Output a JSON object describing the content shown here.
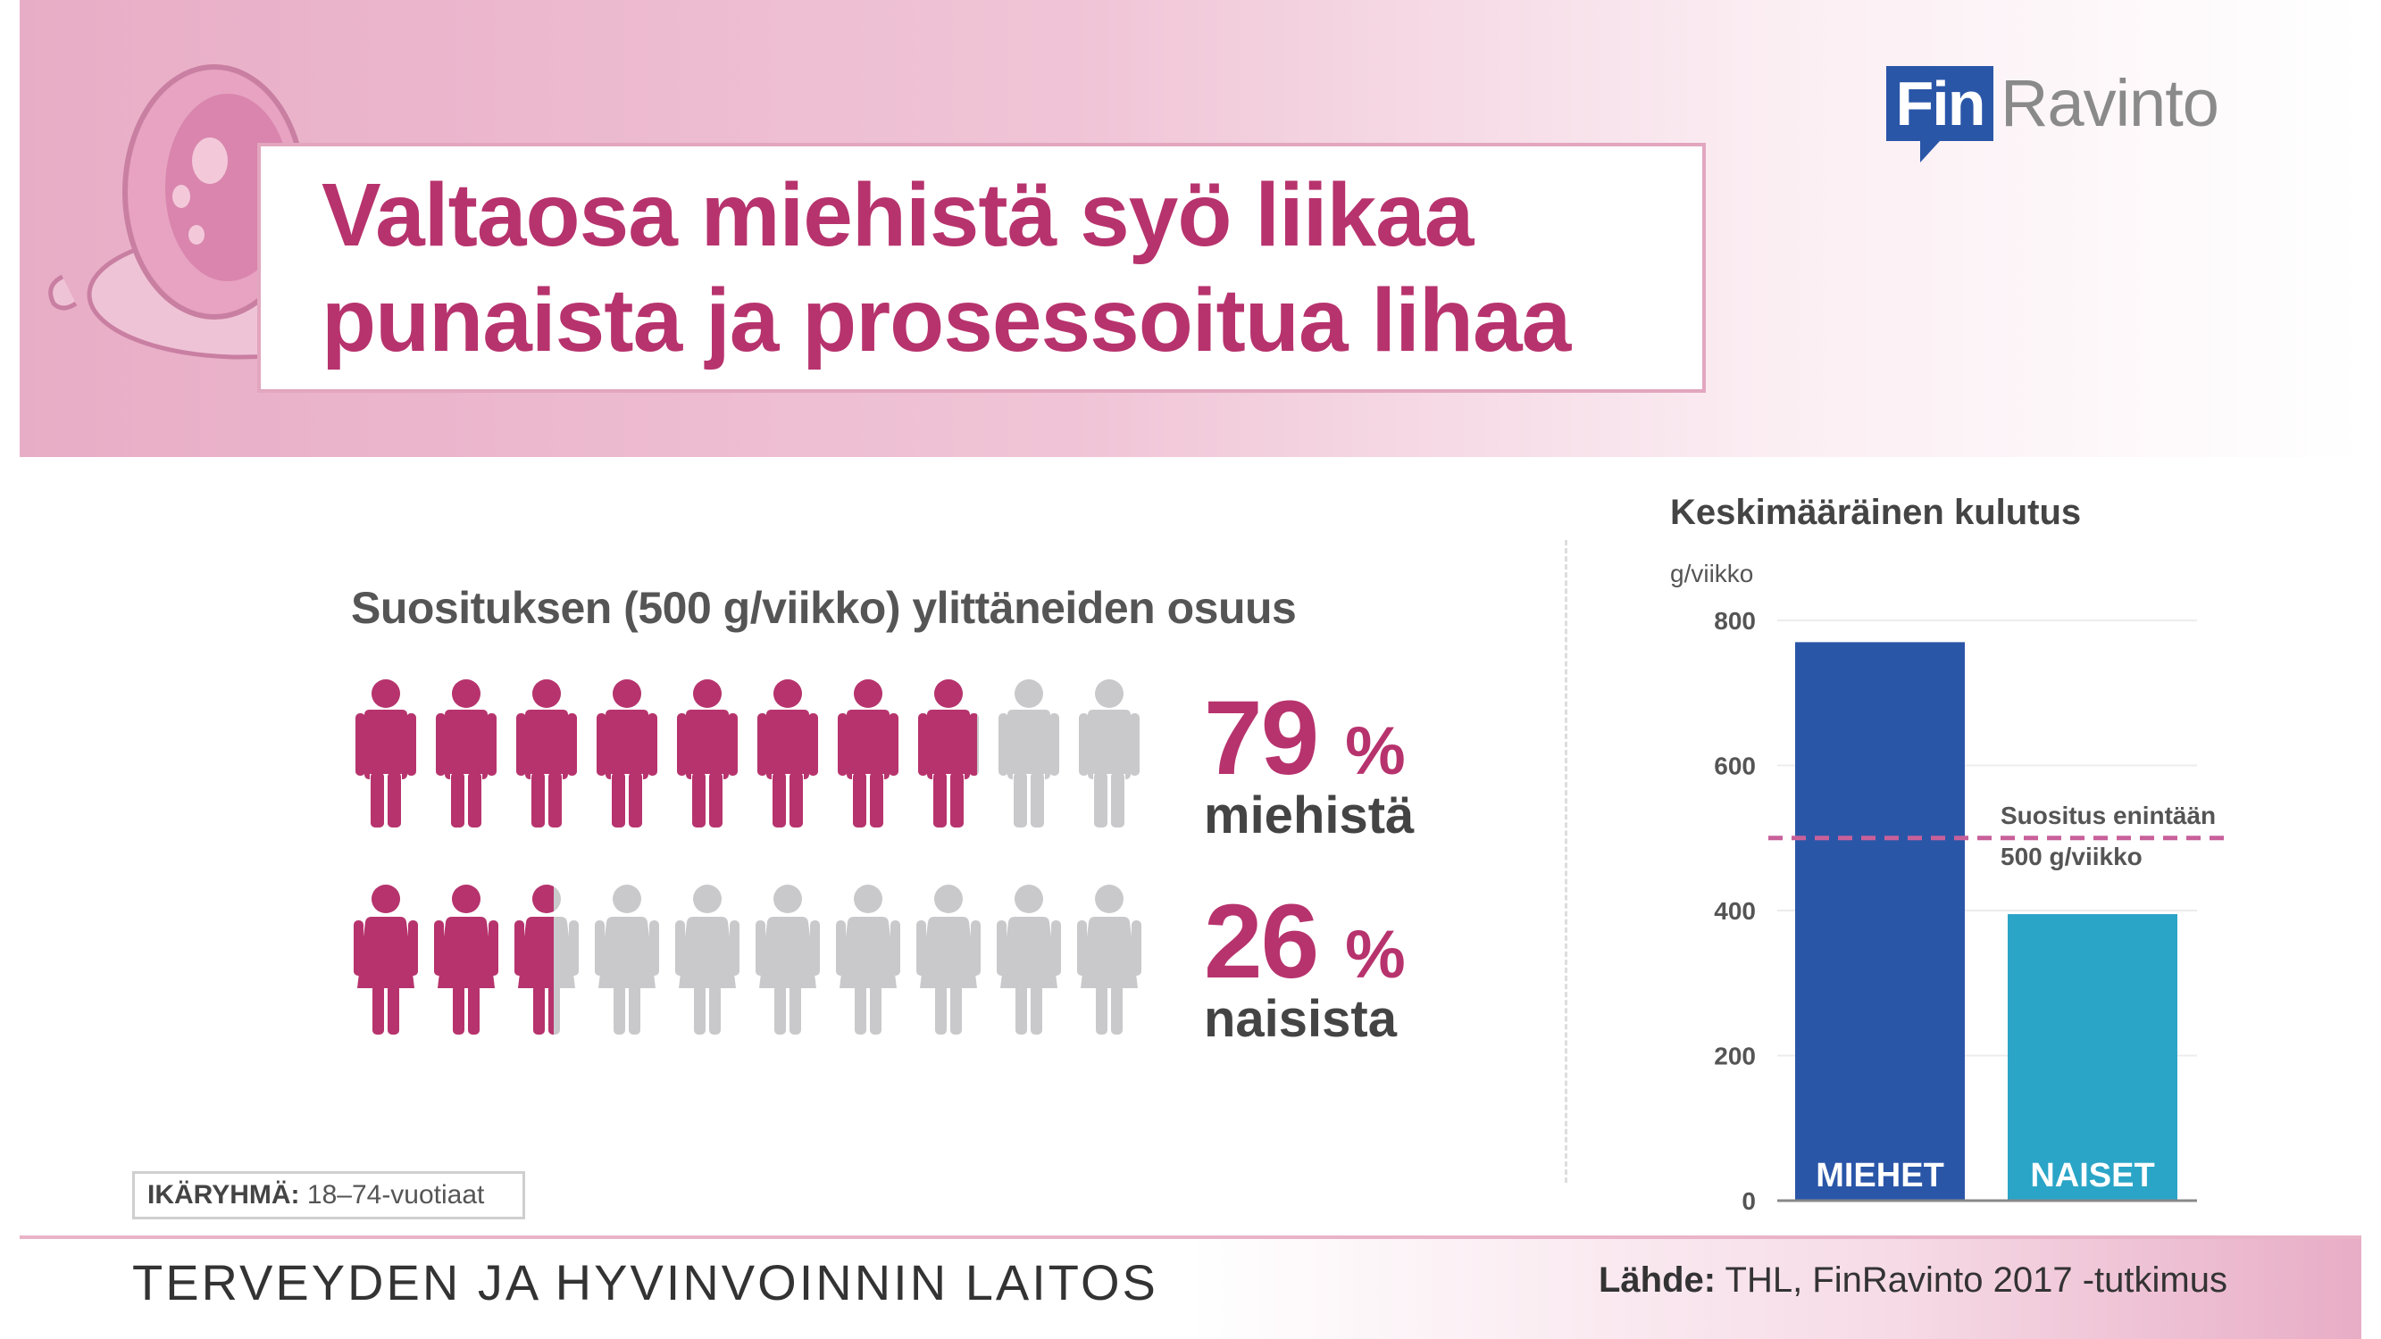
{
  "title": "Valtaosa miehistä syö liikaa punaista ja prosessoitua lihaa",
  "logo": {
    "part1": "Fin",
    "part2": "Ravinto"
  },
  "left_heading": "Suosituksen (500 g/viikko) ylittäneiden osuus",
  "men": {
    "value": "79",
    "unit": "%",
    "label": "miehistä",
    "share": 0.79
  },
  "women": {
    "value": "26",
    "unit": "%",
    "label": "naisista",
    "share": 0.26
  },
  "colors": {
    "accent": "#b7336d",
    "figure_gray": "#c9c9cb",
    "men_bar": "#2a56a8",
    "women_bar": "#2aa5c7",
    "title": "#b7336d"
  },
  "chart_data": {
    "type": "bar",
    "title": "Keskimääräinen kulutus",
    "ylabel": "g/viikko",
    "categories": [
      "MIEHET",
      "NAISET"
    ],
    "values": [
      770,
      395
    ],
    "ylim": [
      0,
      800
    ],
    "yticks": [
      "0",
      "200",
      "400",
      "600",
      "800"
    ],
    "reference_line": {
      "value": 500,
      "label_line1": "Suositus enintään",
      "label_line2": "500 g/viikko"
    },
    "grid": true
  },
  "age_group": {
    "label": "IKÄRYHMÄ:",
    "value": "18–74-vuotiaat"
  },
  "footer": {
    "org": "TERVEYDEN JA HYVINVOINNIN LAITOS",
    "source_label": "Lähde:",
    "source_text": "THL, FinRavinto 2017 -tutkimus"
  }
}
